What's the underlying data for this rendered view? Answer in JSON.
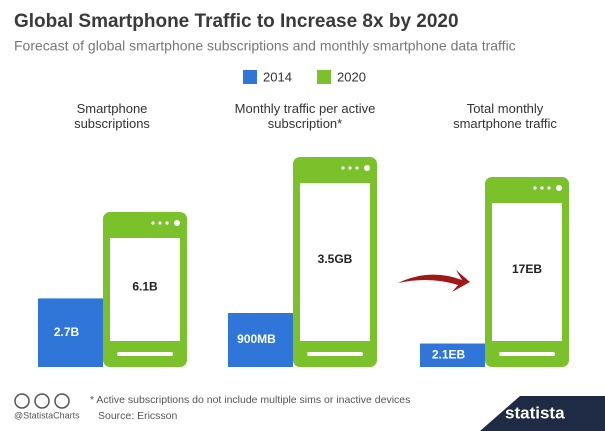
{
  "chart_data": {
    "type": "pictogram",
    "title": "Global Smartphone Traffic to Increase 8x by 2020",
    "subtitle": "Forecast of global smartphone subscriptions and monthly smartphone data traffic",
    "categories": [
      "Smartphone subscriptions",
      "Monthly traffic per active subscription*",
      "Total monthly smartphone traffic"
    ],
    "series": [
      {
        "name": "2014",
        "color": "#2f76d8",
        "values": [
          2.7,
          0.9,
          2.1
        ],
        "value_labels": [
          "2.7B",
          "900MB",
          "2.1EB"
        ]
      },
      {
        "name": "2020",
        "color": "#7bc12b",
        "values": [
          6.1,
          3.5,
          17
        ],
        "value_labels": [
          "6.1B",
          "3.5GB",
          "17EB"
        ]
      }
    ],
    "footnote": "* Active subscriptions do not include multiple sims or inactive devices",
    "source": "Source: Ericsson",
    "credit": "@StatistaCharts",
    "brand": "statista"
  }
}
